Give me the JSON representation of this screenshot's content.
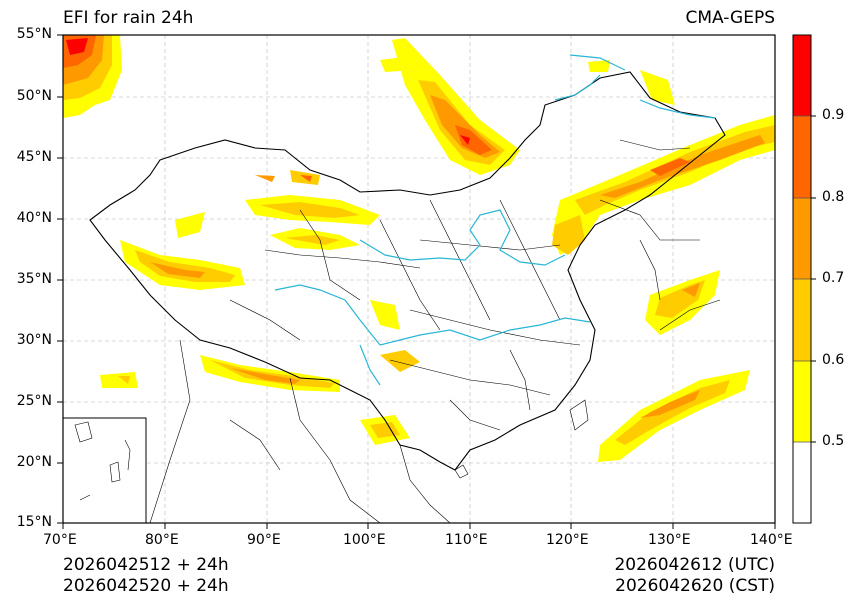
{
  "map": {
    "title_left": "EFI for rain 24h",
    "title_right": "CMA-GEPS",
    "lat_ticks": [
      "15°N",
      "20°N",
      "25°N",
      "30°N",
      "35°N",
      "40°N",
      "45°N",
      "50°N",
      "55°N"
    ],
    "lon_ticks": [
      "70°E",
      "80°E",
      "90°E",
      "100°E",
      "110°E",
      "120°E",
      "130°E",
      "140°E"
    ],
    "lon_range": [
      70,
      140
    ],
    "lat_range": [
      15,
      55
    ],
    "grid": true
  },
  "colorbar": {
    "levels": [
      "0.5",
      "0.6",
      "0.7",
      "0.8",
      "0.9"
    ],
    "colors": [
      "#ffffff",
      "#ffff00",
      "#ffcc00",
      "#ff9900",
      "#ff6600",
      "#ff0000"
    ]
  },
  "footer": {
    "init_utc": "2026042512 + 24h",
    "init_cst": "2026042520 + 24h",
    "valid_utc": "2026042612 (UTC)",
    "valid_cst": "2026042620 (CST)"
  },
  "colors": {
    "river": "#29b6d6",
    "border": "#000000"
  }
}
